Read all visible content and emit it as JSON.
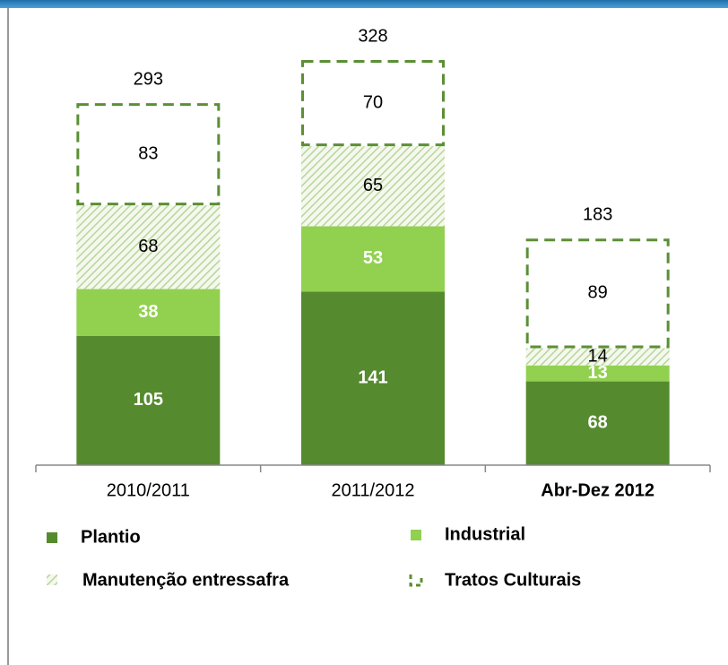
{
  "chart_data": {
    "type": "stacked_bar",
    "categories": [
      "2010/2011",
      "2011/2012",
      "Abr-Dez 2012"
    ],
    "series": [
      {
        "name": "Plantio",
        "color": "#558a2e",
        "pattern": "solid",
        "values": [
          105,
          141,
          68
        ]
      },
      {
        "name": "Industrial",
        "color": "#92d050",
        "pattern": "solid",
        "values": [
          38,
          53,
          13
        ]
      },
      {
        "name": "Manutenção entressafra",
        "color": "#c4dca8",
        "pattern": "hatch",
        "values": [
          68,
          65,
          14
        ]
      },
      {
        "name": "Tratos Culturais",
        "color": "#5b8f35",
        "pattern": "dashed",
        "values": [
          83,
          70,
          89
        ]
      }
    ],
    "totals": [
      293,
      328,
      183
    ]
  }
}
